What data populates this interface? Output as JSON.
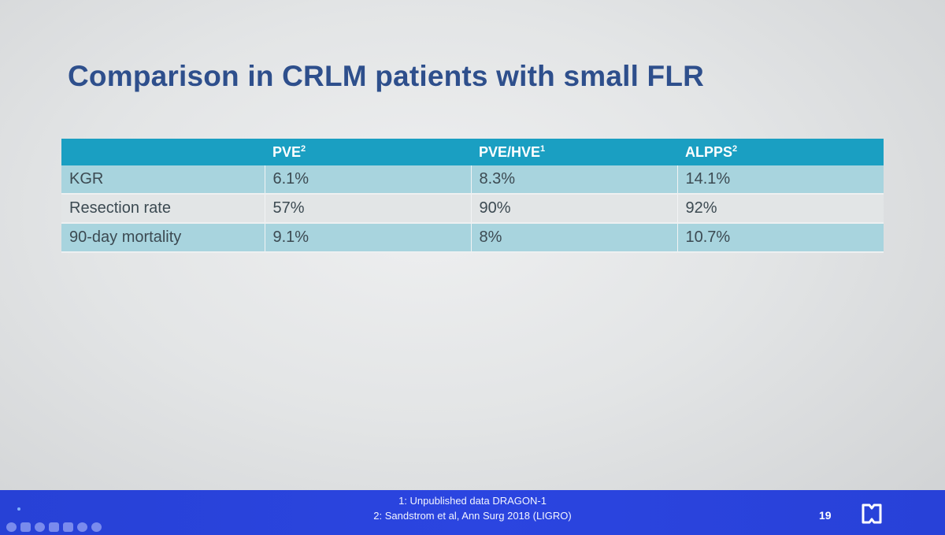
{
  "slide": {
    "title": "Comparison in CRLM patients with small FLR",
    "table": {
      "columns": [
        {
          "label": "",
          "sup": ""
        },
        {
          "label": "PVE",
          "sup": "2"
        },
        {
          "label": "PVE/HVE",
          "sup": "1"
        },
        {
          "label": "ALPPS",
          "sup": "2"
        }
      ],
      "rows": [
        [
          "KGR",
          "6.1%",
          "8.3%",
          "14.1%"
        ],
        [
          "Resection rate",
          "57%",
          "90%",
          "92%"
        ],
        [
          "90-day mortality",
          "9.1%",
          "8%",
          "10.7%"
        ]
      ]
    },
    "footer": {
      "references": [
        "1: Unpublished data DRAGON-1",
        "2: Sandstrom et al, Ann Surg 2018 (LIGRO)"
      ],
      "page_number": "19",
      "logo_icon": "book-logo-icon"
    }
  },
  "colors": {
    "title": "#2e4f8c",
    "header_bg": "#1a9fc2",
    "row_shaded": "#a8d4de",
    "row_plain": "#e2e5e6",
    "footer_bg": "#2b45e0"
  }
}
